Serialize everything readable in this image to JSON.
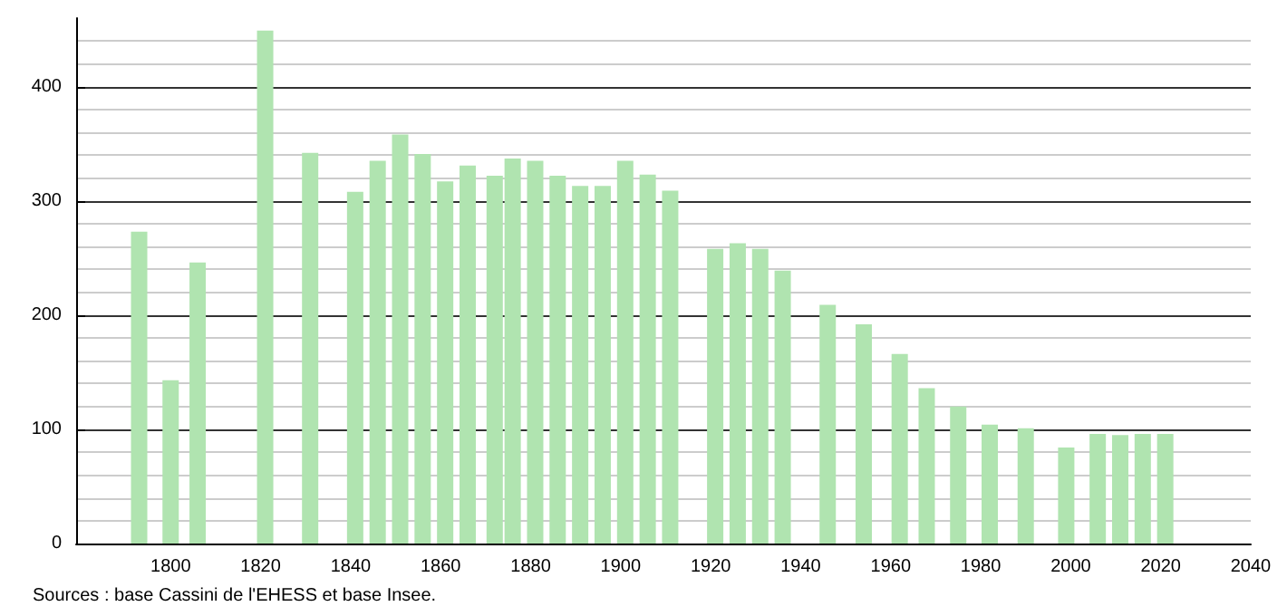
{
  "chart_data": {
    "type": "bar",
    "color": "#b0e4b0",
    "x": [
      1793,
      1800,
      1806,
      1821,
      1831,
      1841,
      1846,
      1851,
      1856,
      1861,
      1866,
      1872,
      1876,
      1881,
      1886,
      1891,
      1896,
      1901,
      1906,
      1911,
      1921,
      1926,
      1931,
      1936,
      1946,
      1954,
      1962,
      1968,
      1975,
      1982,
      1990,
      1999,
      2006,
      2011,
      2016,
      2021
    ],
    "values": [
      273,
      143,
      246,
      449,
      342,
      308,
      335,
      358,
      341,
      317,
      331,
      322,
      337,
      335,
      322,
      313,
      313,
      335,
      323,
      309,
      258,
      263,
      258,
      239,
      209,
      192,
      166,
      136,
      120,
      104,
      101,
      84,
      96,
      95,
      96,
      96
    ],
    "xlim": [
      1779,
      2040
    ],
    "xticks": [
      1800,
      1820,
      1840,
      1860,
      1880,
      1900,
      1920,
      1940,
      1960,
      1980,
      2000,
      2020,
      2040
    ],
    "ylim": [
      0,
      460
    ],
    "yticks": [
      0,
      100,
      200,
      300,
      400
    ],
    "grid": "y",
    "annotations": [
      "Sources : base Cassini de l'EHESS et base Insee."
    ]
  }
}
